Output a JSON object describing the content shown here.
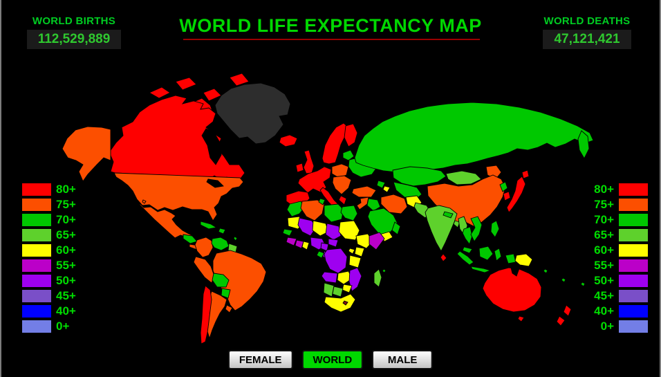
{
  "header": {
    "births_label": "WORLD BIRTHS",
    "births_value": "112,529,889",
    "title": "WORLD LIFE EXPECTANCY MAP",
    "deaths_label": "WORLD DEATHS",
    "deaths_value": "47,121,421"
  },
  "legend": {
    "bands": [
      {
        "key": "80",
        "label": "80+",
        "color": "#fe0000"
      },
      {
        "key": "75",
        "label": "75+",
        "color": "#fc4f00"
      },
      {
        "key": "70",
        "label": "70+",
        "color": "#00c800"
      },
      {
        "key": "65",
        "label": "65+",
        "color": "#5ed12c"
      },
      {
        "key": "60",
        "label": "60+",
        "color": "#fffe00"
      },
      {
        "key": "55",
        "label": "55+",
        "color": "#bb00c8"
      },
      {
        "key": "50",
        "label": "50+",
        "color": "#9e00f0"
      },
      {
        "key": "45",
        "label": "45+",
        "color": "#7a4fc8"
      },
      {
        "key": "40",
        "label": "40+",
        "color": "#0000fe"
      },
      {
        "key": "0",
        "label": "0+",
        "color": "#737ee6"
      }
    ],
    "no_data_color": "#2d2d2d"
  },
  "buttons": [
    {
      "label": "FEMALE",
      "active": false
    },
    {
      "label": "WORLD",
      "active": true
    },
    {
      "label": "MALE",
      "active": false
    }
  ],
  "map": {
    "regions": {
      "greenland": "#2d2d2d",
      "canada": "80",
      "arctic-island-1": "80",
      "arctic-island-2": "80",
      "arctic-island-3": "80",
      "arctic-island-4": "80",
      "baffin-island": "80",
      "alaska": "75",
      "usa": "75",
      "mexico": "75",
      "hawaii-dot": "75",
      "honduras-nicaragua": "70",
      "costa-rica-panama": "75",
      "cuba": "70",
      "hispaniola": "70",
      "lesser-antilles": "70",
      "colombia": "75",
      "venezuela": "70",
      "guyanas": "65",
      "peru": "75",
      "brazil": "75",
      "bolivia": "70",
      "paraguay": "70",
      "chile": "80",
      "argentina": "75",
      "uruguay": "75",
      "iceland": "80",
      "ireland": "80",
      "uk": "80",
      "norway-sweden": "80",
      "finland": "80",
      "denmark": "80",
      "western-europe": "80",
      "iberia": "80",
      "italy": "80",
      "greece": "80",
      "poland": "75",
      "central-balkans": "75",
      "baltics": "70",
      "ukraine-belarus": "70",
      "russia": "70",
      "kamchatka": "70",
      "kazakhstan": "70",
      "central-asia": "70",
      "caucasus": "70",
      "caucasus-south": "60",
      "turkey": "75",
      "syria-levant": "75",
      "iraq": "70",
      "saudi-arabia": "70",
      "yemen": "60",
      "oman": "70",
      "iran": "75",
      "afghanistan": "60",
      "pakistan": "65",
      "mongolia": "65",
      "china": "75",
      "manchuria": "75",
      "north-korea": "70",
      "south-korea": "80",
      "japan": "80",
      "hokkaido": "80",
      "india": "65",
      "nepal": "70",
      "bangladesh": "65",
      "sri-lanka": "80",
      "myanmar": "65",
      "thailand": "70",
      "laos-vietnam": "70",
      "malaysia": "70",
      "sumatra": "70",
      "java": "70",
      "borneo": "70",
      "sulawesi": "70",
      "west-papua": "70",
      "philippines": "70",
      "papua-new-guinea": "60",
      "solomon-dot": "70",
      "vanuatu-dot": "70",
      "fiji-dot": "70",
      "australia": "80",
      "tasmania": "80",
      "new-zealand-north": "80",
      "new-zealand-south": "80",
      "morocco": "70",
      "algeria": "75",
      "tunisia": "70",
      "libya": "70",
      "egypt": "70",
      "mauritania": "60",
      "mali": "50",
      "niger": "60",
      "chad": "50",
      "sudan": "60",
      "ethiopia": "60",
      "somalia": "55",
      "senegal": "70",
      "guinea": "55",
      "ivory-coast": "55",
      "ghana": "60",
      "nigeria": "50",
      "cameroon": "50",
      "central-african-republic": "50",
      "gabon": "70",
      "congo": "50",
      "drc": "50",
      "uganda": "60",
      "kenya": "60",
      "tanzania": "60",
      "angola": "50",
      "zambia": "60",
      "mozambique": "50",
      "zimbabwe": "60",
      "namibia": "65",
      "botswana": "65",
      "south-africa": "60",
      "lesotho": "#7a1414",
      "madagascar": "65",
      "comoros-dot": "70",
      "hudson-bay": "#000000",
      "great-lakes": "#000000",
      "black-sea": "#000000",
      "caspian-sea": "#000000",
      "carpentaria-gulf": "#000000"
    }
  }
}
